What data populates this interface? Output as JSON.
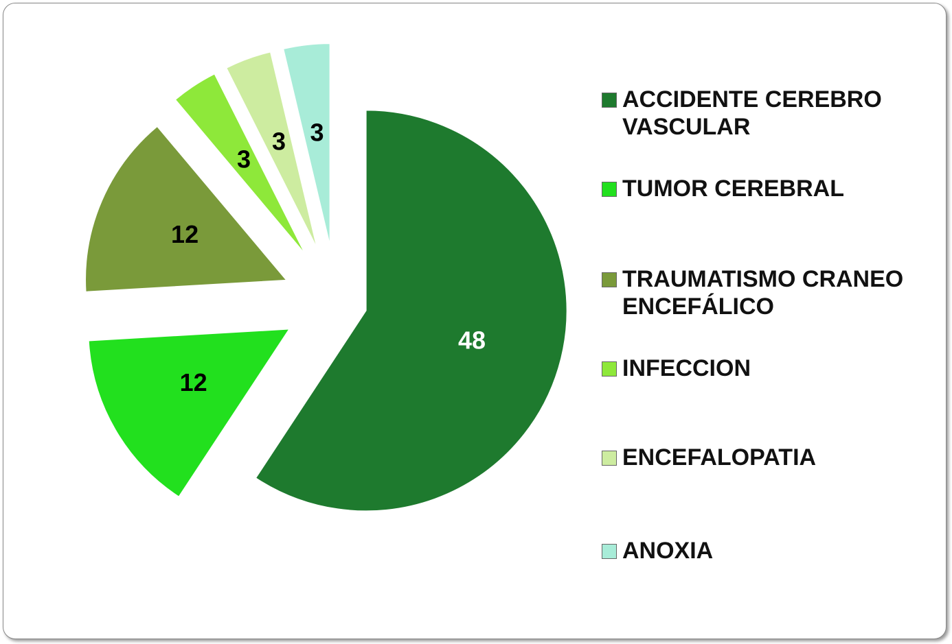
{
  "chart_data": {
    "type": "pie",
    "categories": [
      "ACCIDENTE CEREBRO VASCULAR",
      "TUMOR CEREBRAL",
      "TRAUMATISMO CRANEO ENCEFÁLICO",
      "INFECCION",
      "ENCEFALOPATIA",
      "ANOXIA"
    ],
    "values": [
      48,
      12,
      12,
      3,
      3,
      3
    ],
    "colors": [
      "#1e7a2e",
      "#22e01e",
      "#7a9a3a",
      "#8ee83a",
      "#cdeca0",
      "#a8ecd8"
    ],
    "label_colors": [
      "#ffffff",
      "#000000",
      "#000000",
      "#000000",
      "#000000",
      "#000000"
    ],
    "legend": "right"
  }
}
